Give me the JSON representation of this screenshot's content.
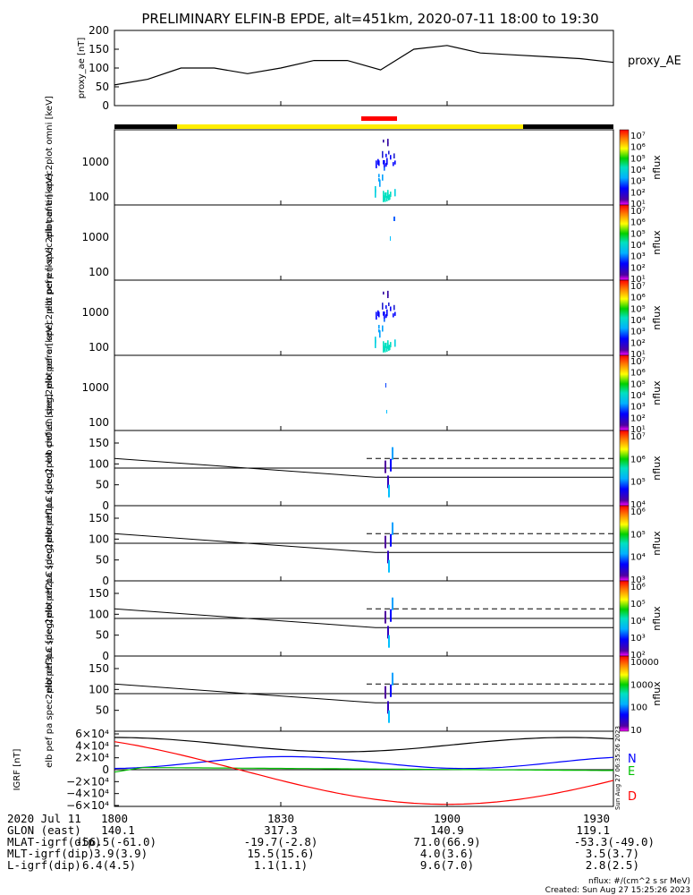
{
  "title": "PRELIMINARY ELFIN-B EPDE, alt=451km, 2020-07-11 18:00 to 19:30",
  "chart_data": [
    {
      "type": "line",
      "ylabel": "proxy_ae [nT]",
      "legend": "proxy_AE",
      "ylim": [
        0,
        200
      ],
      "yticks": [
        "200",
        "150",
        "100",
        "50",
        "0"
      ],
      "series": [
        {
          "name": "proxy_AE",
          "x": [
            0,
            6,
            12,
            18,
            24,
            30,
            36,
            42,
            48,
            54,
            60,
            66,
            72,
            78,
            84,
            90
          ],
          "values": [
            55,
            70,
            100,
            100,
            85,
            100,
            120,
            120,
            95,
            150,
            160,
            140,
            135,
            130,
            125,
            115
          ]
        }
      ]
    },
    {
      "type": "heatmap",
      "ylabel": "elb pef en spec2plot omni [keV]",
      "yticks": [
        "1000",
        "100"
      ],
      "colorbar": {
        "label": "nflux",
        "ticks": [
          "10⁷",
          "10⁶",
          "10⁵",
          "10⁴",
          "10³",
          "10²",
          "10¹"
        ]
      }
    },
    {
      "type": "heatmap",
      "ylabel": "elb pef en spec2plot anti [keV]",
      "yticks": [
        "1000",
        "100"
      ],
      "colorbar": {
        "label": "nflux",
        "ticks": [
          "10⁷",
          "10⁶",
          "10⁵",
          "10⁴",
          "10³",
          "10²",
          "10¹"
        ]
      }
    },
    {
      "type": "heatmap",
      "ylabel": "elb pef en spec2plot perp [keV]",
      "yticks": [
        "1000",
        "100"
      ],
      "colorbar": {
        "label": "nflux",
        "ticks": [
          "10⁷",
          "10⁶",
          "10⁵",
          "10⁴",
          "10³",
          "10²",
          "10¹"
        ]
      }
    },
    {
      "type": "heatmap",
      "ylabel": "elb pef en spec2plot para [keV]",
      "yticks": [
        "1000",
        "100"
      ],
      "colorbar": {
        "label": "nflux",
        "ticks": [
          "10⁷",
          "10⁶",
          "10⁵",
          "10⁴",
          "10³",
          "10²",
          "10¹"
        ]
      }
    },
    {
      "type": "heatmap",
      "ylabel": "elb pef pa spec2plot ch0LC [deg]",
      "ylim": [
        0,
        180
      ],
      "yticks": [
        "150",
        "100",
        "50",
        "0"
      ],
      "colorbar": {
        "label": "nflux",
        "ticks": [
          "10⁷",
          "10⁶",
          "10⁵",
          "10⁴"
        ]
      }
    },
    {
      "type": "heatmap",
      "ylabel": "elb pef pa spec2plot ch1LC [deg]",
      "ylim": [
        0,
        180
      ],
      "yticks": [
        "150",
        "100",
        "50",
        "0"
      ],
      "colorbar": {
        "label": "nflux",
        "ticks": [
          "10⁶",
          "10⁵",
          "10⁴",
          "10³"
        ]
      }
    },
    {
      "type": "heatmap",
      "ylabel": "elb pef pa spec2plot ch2LC [deg]",
      "ylim": [
        0,
        180
      ],
      "yticks": [
        "150",
        "100",
        "50",
        "0"
      ],
      "colorbar": {
        "label": "nflux",
        "ticks": [
          "10⁶",
          "10⁵",
          "10⁴",
          "10³",
          "10²"
        ]
      }
    },
    {
      "type": "heatmap",
      "ylabel": "elb pef pa spec2plot ch3LC [deg]",
      "ylim": [
        0,
        180
      ],
      "yticks": [
        "150",
        "100",
        "50"
      ],
      "colorbar": {
        "label": "nflux",
        "ticks": [
          "10000",
          "1000",
          "100",
          "10"
        ]
      }
    },
    {
      "type": "line",
      "ylabel": "IGRF [nT]",
      "ylim": [
        -60000,
        60000
      ],
      "yticks": [
        "6×10⁴",
        "4×10⁴",
        "2×10⁴",
        "0",
        "−2×10⁴",
        "−4×10⁴",
        "−6×10⁴"
      ],
      "series": [
        {
          "name": "N",
          "color": "#0000ff"
        },
        {
          "name": "E",
          "color": "#00c000"
        },
        {
          "name": "D",
          "color": "#ff0000"
        }
      ]
    }
  ],
  "xaxis": {
    "ticks": [
      "1800",
      "1830",
      "1900",
      "1930"
    ],
    "rows": [
      {
        "label": "2020 Jul 11",
        "values": [
          "1800",
          "1830",
          "1900",
          "1930"
        ]
      },
      {
        "label": "GLON (east)",
        "values": [
          "140.1",
          "317.3",
          "140.9",
          "119.1"
        ]
      },
      {
        "label": "MLAT-igrf(dip)",
        "values": [
          "-56.5(-61.0)",
          "-19.7(-2.8)",
          "71.0(66.9)",
          "-53.3(-49.0)"
        ]
      },
      {
        "label": "MLT-igrf(dip)",
        "values": [
          "3.9(3.9)",
          "15.5(15.6)",
          "4.0(3.6)",
          "3.5(3.7)"
        ]
      },
      {
        "label": "L-igrf(dip)",
        "values": [
          "6.4(4.5)",
          "1.1(1.1)",
          "9.6(7.0)",
          "2.8(2.5)"
        ]
      }
    ]
  },
  "footer": {
    "units": "nflux: #/(cm^2 s sr MeV)",
    "created": "Created: Sun Aug 27 15:25:26 2023",
    "stamp": "Sun Aug 27 06:35:26 2023"
  }
}
